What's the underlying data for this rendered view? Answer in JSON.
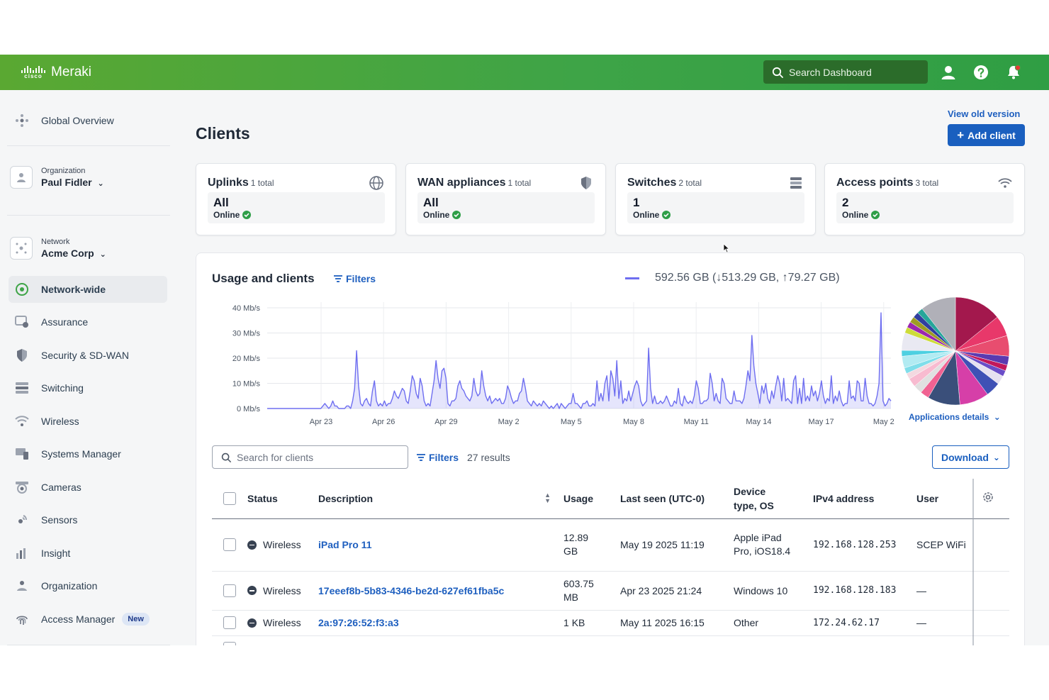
{
  "topbar": {
    "cisco": "cisco",
    "app_name": "Meraki",
    "search_placeholder": "Search Dashboard",
    "accent": "#3ea447"
  },
  "sidebar": {
    "global_overview": "Global Overview",
    "org_label": "Organization",
    "org_name": "Paul Fidler",
    "network_label": "Network",
    "network_name": "Acme Corp",
    "items": [
      "Network-wide",
      "Assurance",
      "Security & SD-WAN",
      "Switching",
      "Wireless",
      "Systems Manager",
      "Cameras",
      "Sensors",
      "Insight",
      "Organization",
      "Access Manager"
    ],
    "new_badge": "New",
    "active": "Network-wide"
  },
  "page": {
    "title": "Clients",
    "view_old_version": "View old version",
    "add_client": "Add client",
    "primary_color": "#1a5fbf"
  },
  "cards": [
    {
      "title": "Uplinks",
      "total": "1 total",
      "value": "All",
      "status": "Online",
      "icon": "globe-icon"
    },
    {
      "title": "WAN appliances",
      "total": "1 total",
      "value": "All",
      "status": "Online",
      "icon": "shield-icon"
    },
    {
      "title": "Switches",
      "total": "2 total",
      "value": "1",
      "status": "Online",
      "icon": "switch-icon"
    },
    {
      "title": "Access points",
      "total": "3 total",
      "value": "2",
      "status": "Online",
      "icon": "wifi-icon"
    }
  ],
  "usage": {
    "title": "Usage and clients",
    "filters_label": "Filters",
    "total_text": "592.56 GB (↓513.29 GB, ↑79.27 GB)",
    "app_details": "Applications details"
  },
  "chart_data": [
    {
      "type": "area",
      "y_unit": "Mb/s",
      "ylim": [
        0,
        40
      ],
      "y_ticks": [
        "0 Mb/s",
        "10 Mb/s",
        "20 Mb/s",
        "30 Mb/s",
        "40 Mb/s"
      ],
      "x_ticks": [
        "Apr 23",
        "Apr 26",
        "Apr 29",
        "May 2",
        "May 5",
        "May 8",
        "May 11",
        "May 14",
        "May 17",
        "May 2"
      ],
      "grid": true,
      "series": [
        {
          "name": "Usage",
          "color": "#6e6ef0",
          "values": [
            0,
            0,
            0,
            0,
            0,
            0,
            0,
            0,
            0,
            0,
            0,
            0,
            0,
            0,
            0,
            0,
            0,
            0,
            0,
            0,
            0,
            0,
            0,
            0,
            0,
            0,
            0,
            0,
            1,
            2,
            1,
            0,
            1,
            3,
            1,
            1,
            0,
            0,
            0,
            0,
            1,
            1,
            0,
            3,
            8,
            23,
            9,
            2,
            1,
            3,
            4,
            2,
            1,
            7,
            11,
            3,
            1,
            2,
            1,
            3,
            1,
            2,
            2,
            4,
            7,
            5,
            4,
            6,
            8,
            7,
            3,
            2,
            7,
            13,
            11,
            6,
            4,
            12,
            9,
            3,
            1,
            2,
            1,
            6,
            11,
            19,
            12,
            8,
            15,
            16,
            12,
            2,
            1,
            3,
            3,
            4,
            9,
            11,
            8,
            7,
            5,
            4,
            3,
            5,
            12,
            7,
            5,
            6,
            15,
            9,
            5,
            3,
            5,
            2,
            3,
            4,
            3,
            4,
            2,
            2,
            4,
            9,
            7,
            4,
            2,
            3,
            3,
            6,
            7,
            12,
            8,
            3,
            2,
            1,
            3,
            2,
            1,
            2,
            1,
            3,
            2,
            1,
            0,
            1,
            0,
            1,
            2,
            0,
            2,
            1,
            0,
            1,
            2,
            2,
            6,
            2,
            2,
            1,
            0,
            2,
            2,
            3,
            1,
            1,
            2,
            1,
            11,
            3,
            6,
            3,
            10,
            13,
            3,
            15,
            12,
            5,
            19,
            4,
            11,
            2,
            4,
            3,
            7,
            3,
            6,
            9,
            11,
            9,
            3,
            1,
            2,
            3,
            24,
            8,
            2,
            5,
            2,
            2,
            3,
            2,
            3,
            5,
            3,
            1,
            1,
            3,
            2,
            8,
            2,
            1,
            5,
            3,
            2,
            3,
            2,
            5,
            11,
            8,
            2,
            2,
            3,
            3,
            4,
            14,
            10,
            3,
            6,
            3,
            2,
            12,
            10,
            4,
            3,
            2,
            2,
            7,
            3,
            3,
            3,
            2,
            4,
            9,
            15,
            11,
            29,
            17,
            10,
            6,
            2,
            9,
            6,
            10,
            4,
            2,
            7,
            4,
            9,
            13,
            10,
            3,
            12,
            3,
            4,
            3,
            2,
            11,
            13,
            2,
            8,
            2,
            12,
            3,
            5,
            3,
            9,
            5,
            7,
            3,
            6,
            11,
            5,
            2,
            4,
            3,
            13,
            2,
            5,
            3,
            7,
            3,
            1,
            2,
            2,
            11,
            4,
            5,
            3,
            11,
            10,
            3,
            3,
            12,
            5,
            2,
            2,
            1,
            2,
            5,
            10,
            38,
            3,
            1,
            2,
            4,
            3
          ]
        }
      ]
    },
    {
      "type": "pie",
      "values": [
        16,
        7,
        7,
        3,
        2,
        2,
        3,
        5,
        10,
        11,
        3,
        3,
        3,
        2,
        2,
        4,
        2,
        6,
        2,
        2,
        2,
        2,
        2,
        12
      ],
      "colors": [
        "#a3184d",
        "#e8386a",
        "#e84d6f",
        "#5b3ab0",
        "#c2185b",
        "#6a4dc8",
        "#e6e0f0",
        "#3f51b5",
        "#d63fa8",
        "#3a4f7a",
        "#f06292",
        "#e0e0e0",
        "#f8bbd0",
        "#f3d9e0",
        "#80deea",
        "#b2ebf2",
        "#4dd0e1",
        "#e9e9f2",
        "#cddc39",
        "#9c27b0",
        "#9e9d24",
        "#303f9f",
        "#26a69a",
        "#b0b0b8"
      ]
    }
  ],
  "clients": {
    "search_placeholder": "Search for clients",
    "filters_label": "Filters",
    "results": "27 results",
    "download": "Download",
    "columns": [
      "Status",
      "Description",
      "Usage",
      "Last seen (UTC-0)",
      "Device",
      "type, OS",
      "IPv4 address",
      "User"
    ],
    "rows": [
      {
        "status": "Wireless",
        "description": "iPad Pro 11",
        "usage_num": "12.89",
        "usage_unit": "GB",
        "last_seen": "May 19 2025  11:19",
        "device_1": "Apple iPad",
        "device_2": "Pro, iOS18.4",
        "ipv4": "192.168.128.253",
        "user": "SCEP WiFi"
      },
      {
        "status": "Wireless",
        "description": "17eeef8b-5b83-4346-be2d-627ef61fba5c",
        "usage_num": "603.75",
        "usage_unit": "MB",
        "last_seen": "Apr 23 2025  21:24",
        "device_1": "Windows 10",
        "device_2": "",
        "ipv4": "192.168.128.183",
        "user": "—"
      },
      {
        "status": "Wireless",
        "description": "2a:97:26:52:f3:a3",
        "usage_num": "1",
        "usage_unit": "KB",
        "last_seen": "May 11 2025  16:15",
        "device_1": "Other",
        "device_2": "",
        "ipv4": "172.24.62.17",
        "user": "—"
      }
    ]
  }
}
